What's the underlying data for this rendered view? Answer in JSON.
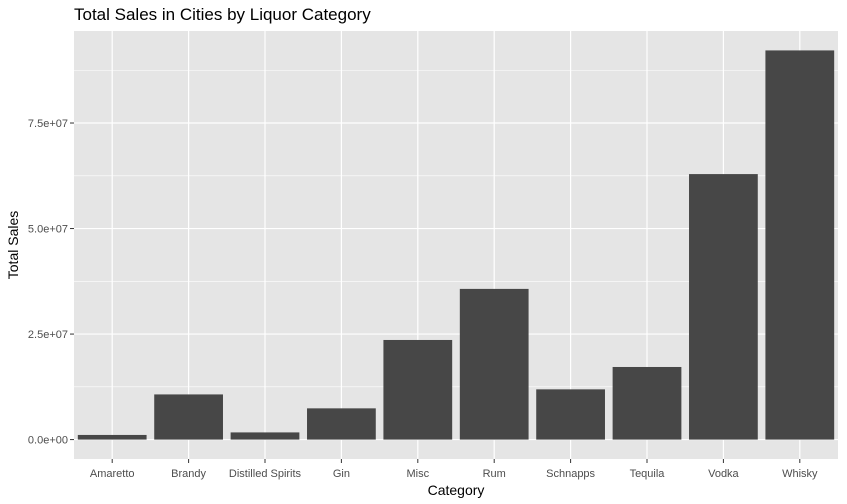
{
  "chart_data": {
    "type": "bar",
    "title": "Total Sales in Cities by Liquor Category",
    "xlabel": "Category",
    "ylabel": "Total Sales",
    "categories": [
      "Amaretto",
      "Brandy",
      "Distilled Spirits",
      "Gin",
      "Misc",
      "Rum",
      "Schnapps",
      "Tequila",
      "Vodka",
      "Whisky"
    ],
    "values": [
      1100000,
      10700000,
      1700000,
      7400000,
      23600000,
      35700000,
      11900000,
      17200000,
      62900000,
      92200000
    ],
    "ylim": [
      -4600000,
      96800000
    ],
    "yticks": [
      0,
      25000000,
      50000000,
      75000000
    ],
    "ytick_labels": [
      "0.0e+00",
      "2.5e+07",
      "5.0e+07",
      "7.5e+07"
    ],
    "grid": true,
    "legend": "none",
    "colors": {
      "panel_background": "#e5e5e5",
      "grid_major": "#ffffff",
      "bar_fill": "#474747",
      "tick_text": "#4d4d4d",
      "tick_mark": "#333333"
    }
  }
}
